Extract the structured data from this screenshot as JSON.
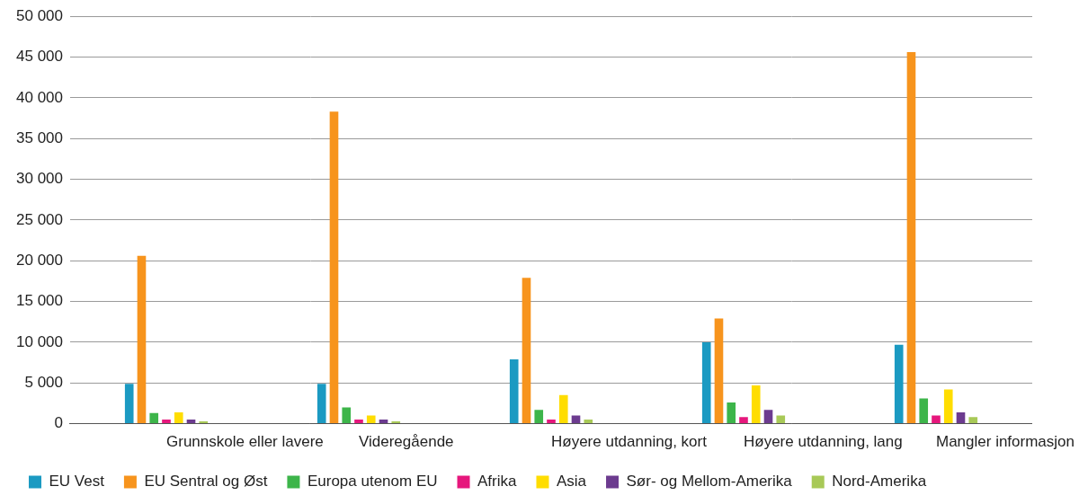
{
  "chart_data": {
    "type": "bar",
    "categories": [
      "Grunnskole eller lavere",
      "Videregående",
      "Høyere utdanning, kort",
      "Høyere utdanning, lang",
      "Mangler informasjon"
    ],
    "series": [
      {
        "name": "EU Vest",
        "color": "#1b9ac2",
        "values": [
          4900,
          4900,
          7900,
          10000,
          9700
        ]
      },
      {
        "name": "EU Sentral og Øst",
        "color": "#f7941d",
        "values": [
          20600,
          38300,
          17900,
          12900,
          45600
        ]
      },
      {
        "name": "Europa utenom EU",
        "color": "#3db54a",
        "values": [
          1300,
          2000,
          1700,
          2600,
          3100
        ]
      },
      {
        "name": "Afrika",
        "color": "#e6177c",
        "values": [
          500,
          500,
          500,
          800,
          1000
        ]
      },
      {
        "name": "Asia",
        "color": "#ffdd00",
        "values": [
          1400,
          1000,
          3500,
          4700,
          4200
        ]
      },
      {
        "name": "Sør- og Mellom-Amerika",
        "color": "#6c3b8f",
        "values": [
          500,
          500,
          1000,
          1700,
          1400
        ]
      },
      {
        "name": "Nord-Amerika",
        "color": "#a8c957",
        "values": [
          300,
          300,
          500,
          1000,
          800
        ]
      }
    ],
    "ylim": [
      0,
      50000
    ],
    "yticks": [
      0,
      {
        "value": 5000,
        "label": "5 000"
      },
      {
        "value": 10000,
        "label": "10 000"
      },
      {
        "value": 15000,
        "label": "15 000"
      },
      {
        "value": 20000,
        "label": "20 000"
      },
      {
        "value": 25000,
        "label": "25 000"
      },
      {
        "value": 30000,
        "label": "30 000"
      },
      {
        "value": 35000,
        "label": "35 000"
      },
      {
        "value": 40000,
        "label": "40 000"
      },
      {
        "value": 45000,
        "label": "45 000"
      },
      {
        "value": 50000,
        "label": "50 000"
      }
    ],
    "grid": true,
    "legend": "bottom"
  }
}
